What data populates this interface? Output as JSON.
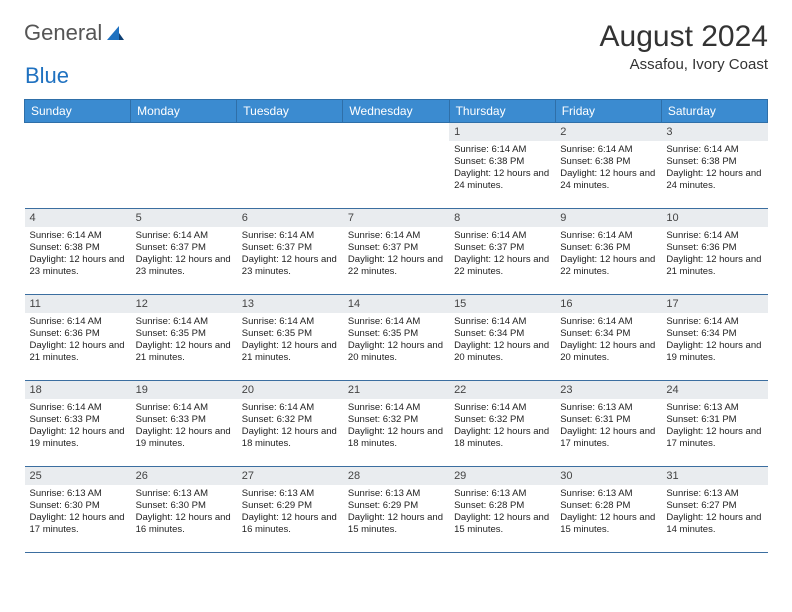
{
  "brand": {
    "part1": "General",
    "part2": "Blue"
  },
  "title": "August 2024",
  "location": "Assafou, Ivory Coast",
  "colors": {
    "header_bg": "#3b8bd0",
    "header_text": "#ffffff",
    "row_border": "#3b6ea0",
    "daynum_bg": "#e9ecef",
    "logo_blue": "#1f71c0"
  },
  "weekdays": [
    "Sunday",
    "Monday",
    "Tuesday",
    "Wednesday",
    "Thursday",
    "Friday",
    "Saturday"
  ],
  "grid": {
    "rows": 5,
    "cols": 7,
    "first_day_col": 4,
    "days_in_month": 31
  },
  "days": {
    "1": {
      "sunrise": "6:14 AM",
      "sunset": "6:38 PM",
      "daylight": "12 hours and 24 minutes."
    },
    "2": {
      "sunrise": "6:14 AM",
      "sunset": "6:38 PM",
      "daylight": "12 hours and 24 minutes."
    },
    "3": {
      "sunrise": "6:14 AM",
      "sunset": "6:38 PM",
      "daylight": "12 hours and 24 minutes."
    },
    "4": {
      "sunrise": "6:14 AM",
      "sunset": "6:38 PM",
      "daylight": "12 hours and 23 minutes."
    },
    "5": {
      "sunrise": "6:14 AM",
      "sunset": "6:37 PM",
      "daylight": "12 hours and 23 minutes."
    },
    "6": {
      "sunrise": "6:14 AM",
      "sunset": "6:37 PM",
      "daylight": "12 hours and 23 minutes."
    },
    "7": {
      "sunrise": "6:14 AM",
      "sunset": "6:37 PM",
      "daylight": "12 hours and 22 minutes."
    },
    "8": {
      "sunrise": "6:14 AM",
      "sunset": "6:37 PM",
      "daylight": "12 hours and 22 minutes."
    },
    "9": {
      "sunrise": "6:14 AM",
      "sunset": "6:36 PM",
      "daylight": "12 hours and 22 minutes."
    },
    "10": {
      "sunrise": "6:14 AM",
      "sunset": "6:36 PM",
      "daylight": "12 hours and 21 minutes."
    },
    "11": {
      "sunrise": "6:14 AM",
      "sunset": "6:36 PM",
      "daylight": "12 hours and 21 minutes."
    },
    "12": {
      "sunrise": "6:14 AM",
      "sunset": "6:35 PM",
      "daylight": "12 hours and 21 minutes."
    },
    "13": {
      "sunrise": "6:14 AM",
      "sunset": "6:35 PM",
      "daylight": "12 hours and 21 minutes."
    },
    "14": {
      "sunrise": "6:14 AM",
      "sunset": "6:35 PM",
      "daylight": "12 hours and 20 minutes."
    },
    "15": {
      "sunrise": "6:14 AM",
      "sunset": "6:34 PM",
      "daylight": "12 hours and 20 minutes."
    },
    "16": {
      "sunrise": "6:14 AM",
      "sunset": "6:34 PM",
      "daylight": "12 hours and 20 minutes."
    },
    "17": {
      "sunrise": "6:14 AM",
      "sunset": "6:34 PM",
      "daylight": "12 hours and 19 minutes."
    },
    "18": {
      "sunrise": "6:14 AM",
      "sunset": "6:33 PM",
      "daylight": "12 hours and 19 minutes."
    },
    "19": {
      "sunrise": "6:14 AM",
      "sunset": "6:33 PM",
      "daylight": "12 hours and 19 minutes."
    },
    "20": {
      "sunrise": "6:14 AM",
      "sunset": "6:32 PM",
      "daylight": "12 hours and 18 minutes."
    },
    "21": {
      "sunrise": "6:14 AM",
      "sunset": "6:32 PM",
      "daylight": "12 hours and 18 minutes."
    },
    "22": {
      "sunrise": "6:14 AM",
      "sunset": "6:32 PM",
      "daylight": "12 hours and 18 minutes."
    },
    "23": {
      "sunrise": "6:13 AM",
      "sunset": "6:31 PM",
      "daylight": "12 hours and 17 minutes."
    },
    "24": {
      "sunrise": "6:13 AM",
      "sunset": "6:31 PM",
      "daylight": "12 hours and 17 minutes."
    },
    "25": {
      "sunrise": "6:13 AM",
      "sunset": "6:30 PM",
      "daylight": "12 hours and 17 minutes."
    },
    "26": {
      "sunrise": "6:13 AM",
      "sunset": "6:30 PM",
      "daylight": "12 hours and 16 minutes."
    },
    "27": {
      "sunrise": "6:13 AM",
      "sunset": "6:29 PM",
      "daylight": "12 hours and 16 minutes."
    },
    "28": {
      "sunrise": "6:13 AM",
      "sunset": "6:29 PM",
      "daylight": "12 hours and 15 minutes."
    },
    "29": {
      "sunrise": "6:13 AM",
      "sunset": "6:28 PM",
      "daylight": "12 hours and 15 minutes."
    },
    "30": {
      "sunrise": "6:13 AM",
      "sunset": "6:28 PM",
      "daylight": "12 hours and 15 minutes."
    },
    "31": {
      "sunrise": "6:13 AM",
      "sunset": "6:27 PM",
      "daylight": "12 hours and 14 minutes."
    }
  },
  "labels": {
    "sunrise": "Sunrise: ",
    "sunset": "Sunset: ",
    "daylight": "Daylight: "
  }
}
